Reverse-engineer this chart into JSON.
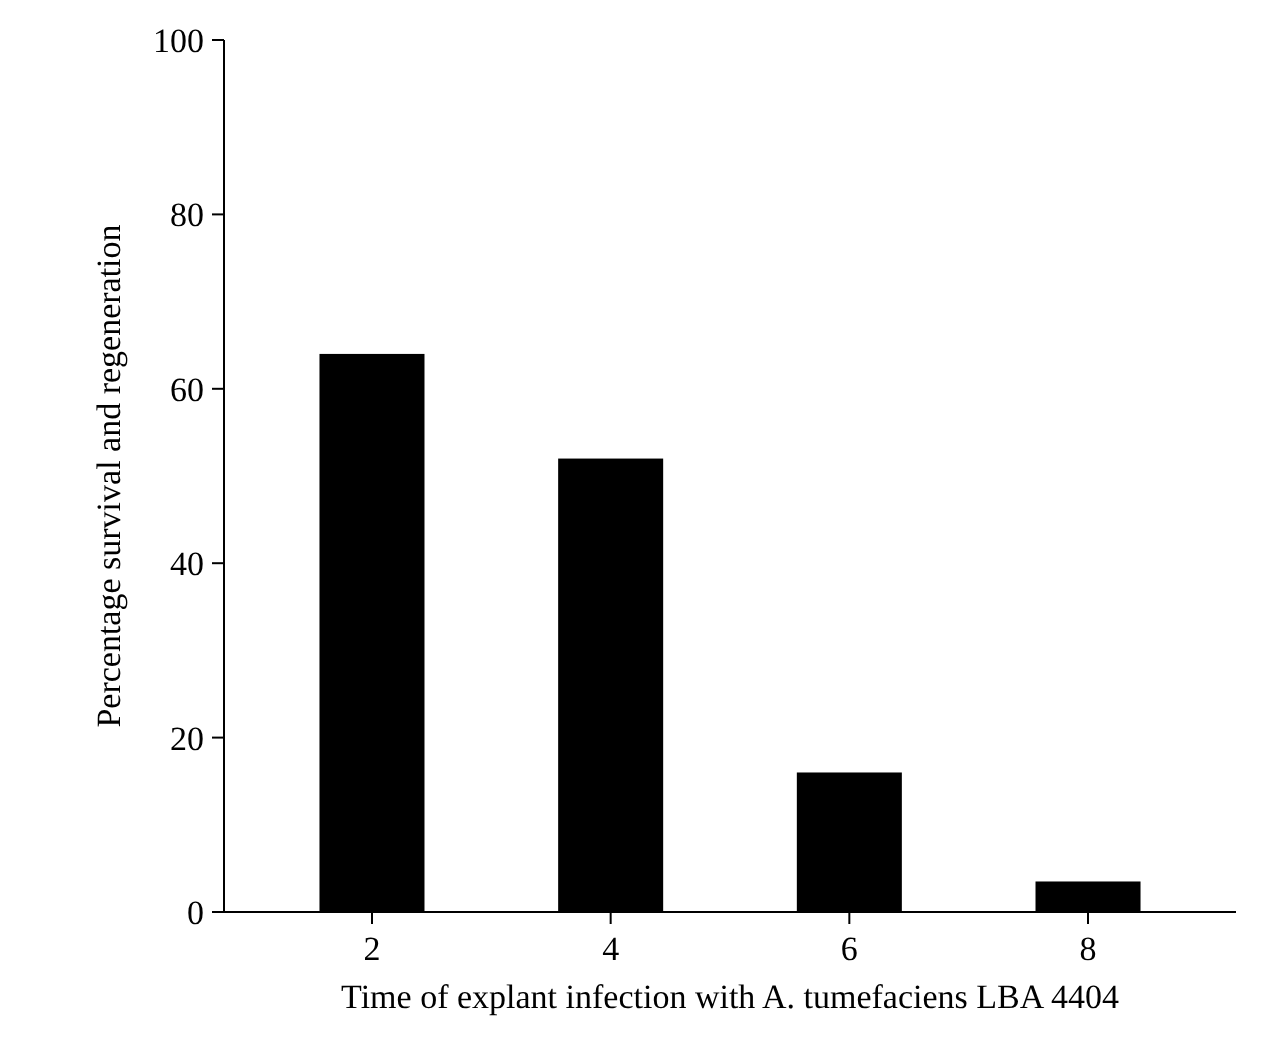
{
  "chart_data": {
    "type": "bar",
    "xlabel": "Time of explant infection with A. tumefaciens LBA 4404",
    "ylabel": "Percentage survival and regeneration",
    "categories": [
      "2",
      "4",
      "6",
      "8"
    ],
    "values": [
      64,
      52,
      16,
      3.5
    ],
    "color": "#000000",
    "ylim": [
      0,
      100
    ],
    "yticks": [
      0,
      20,
      40,
      60,
      80,
      100
    ],
    "grid": false
  }
}
